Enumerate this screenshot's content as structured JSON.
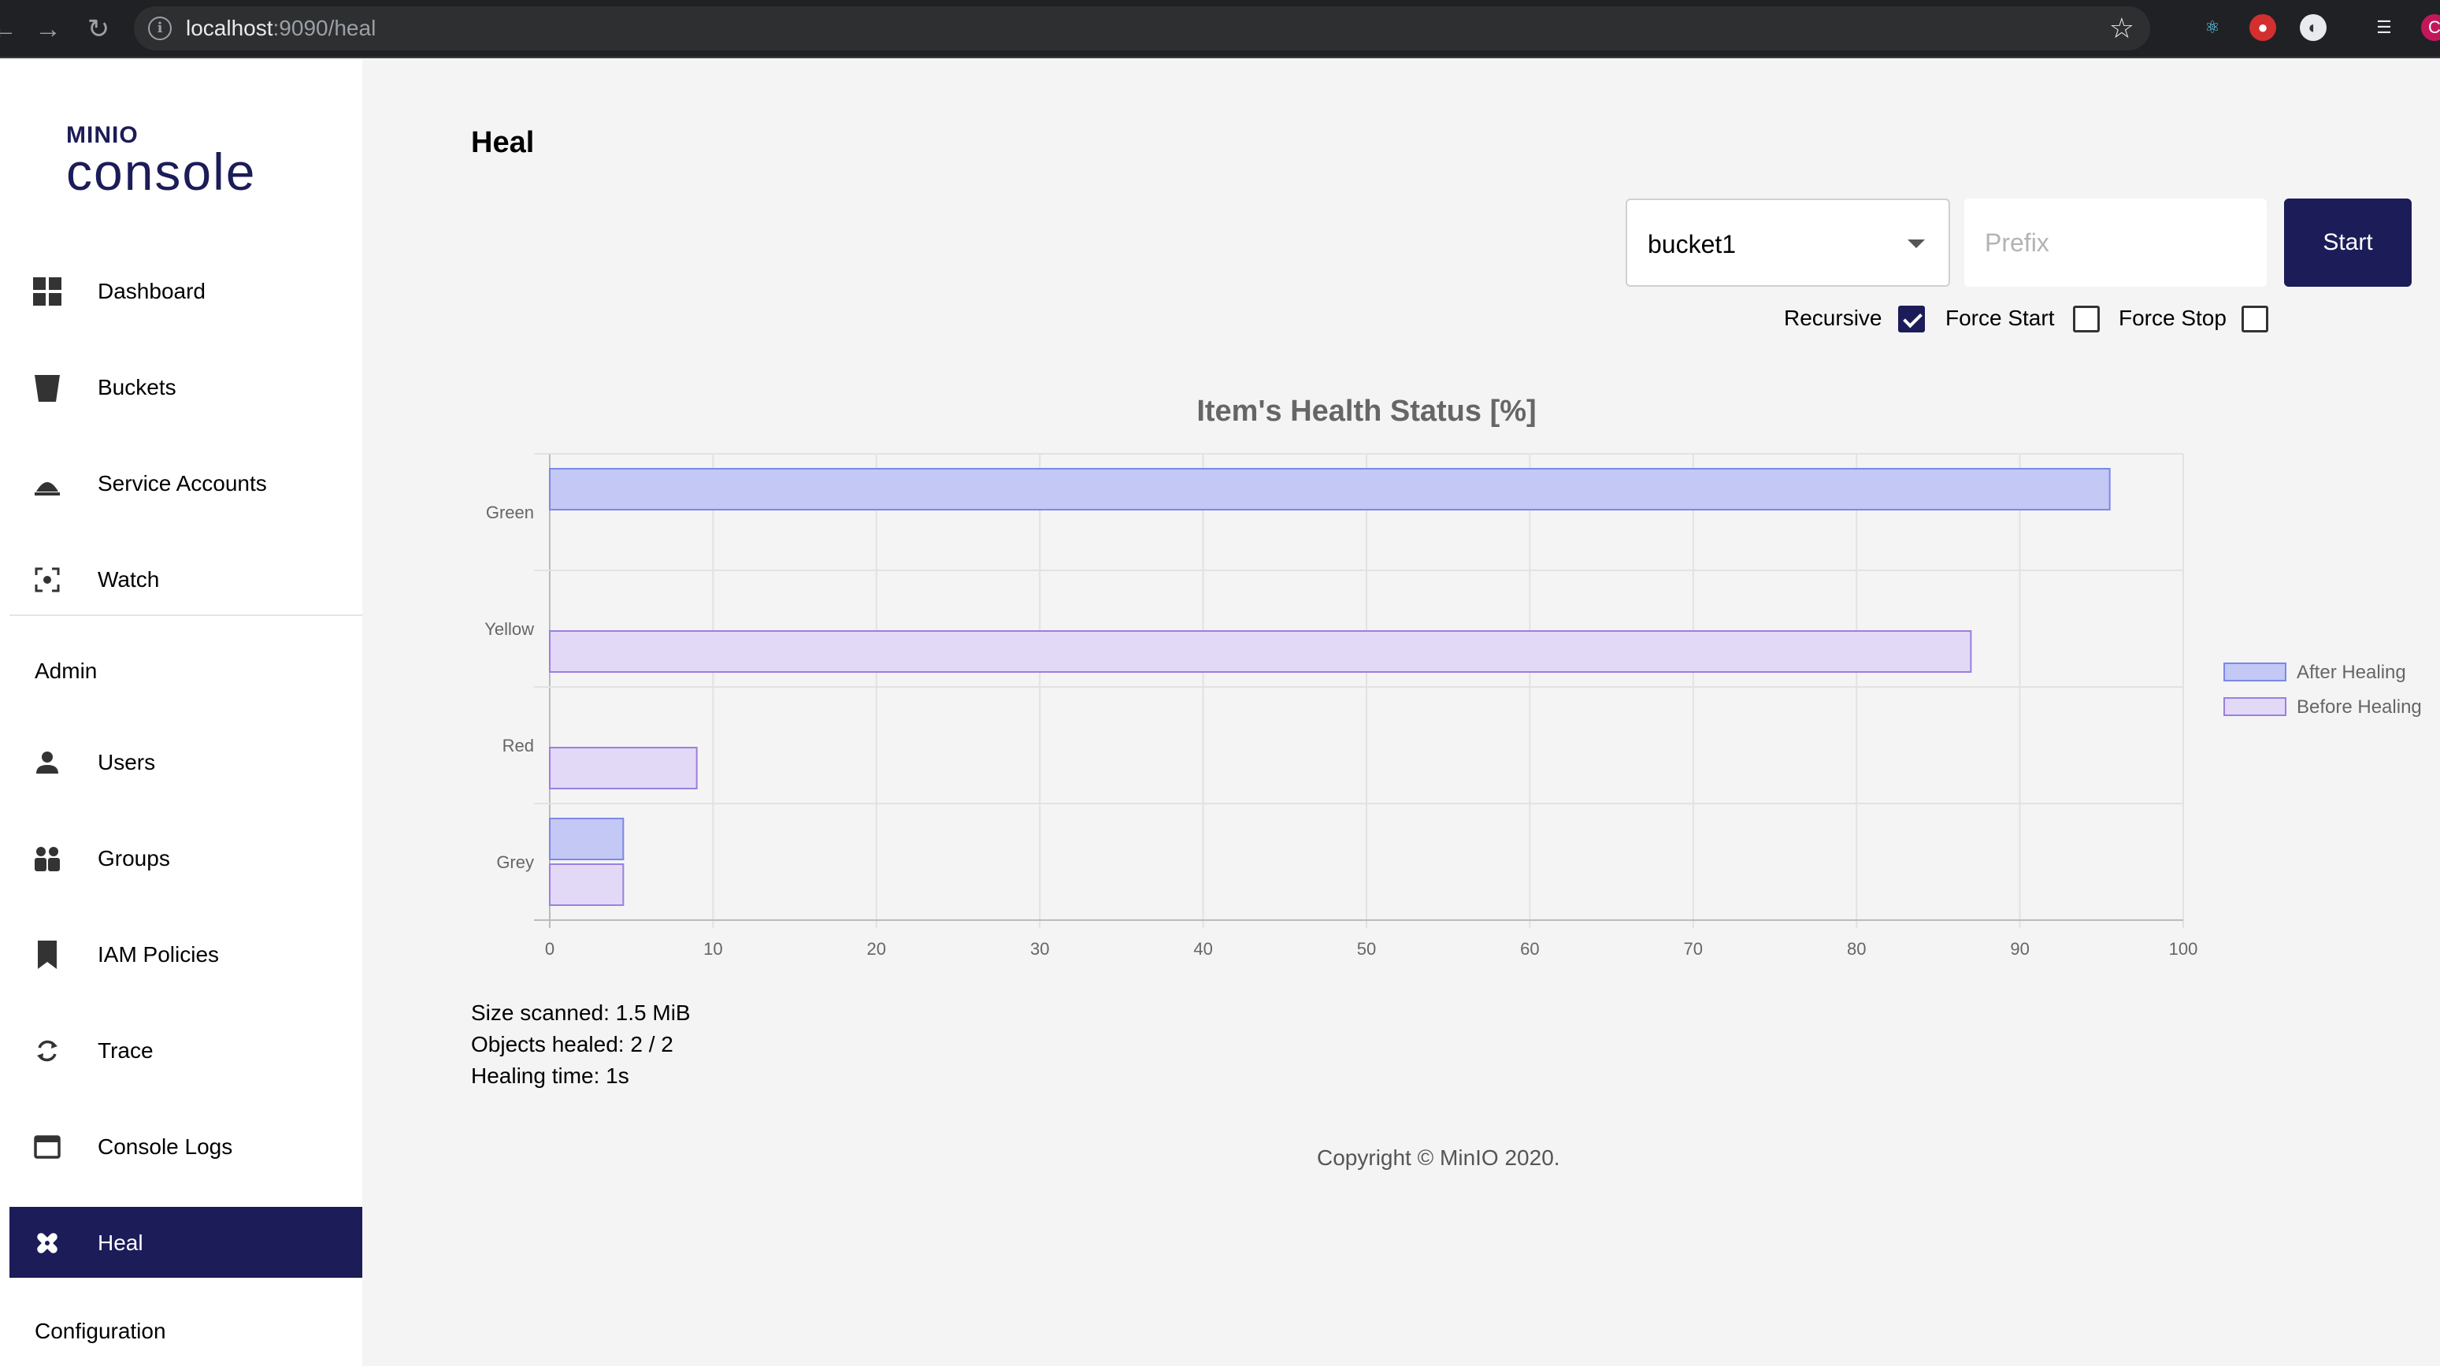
{
  "browser": {
    "url_host": "localhost",
    "url_path": ":9090/heal"
  },
  "logo": {
    "top": "MINIO",
    "bottom": "console"
  },
  "sidebar": {
    "items": [
      {
        "label": "Dashboard",
        "icon": "dashboard-icon"
      },
      {
        "label": "Buckets",
        "icon": "bucket-icon"
      },
      {
        "label": "Service Accounts",
        "icon": "service-accounts-icon"
      },
      {
        "label": "Watch",
        "icon": "watch-icon"
      }
    ],
    "admin_label": "Admin",
    "admin_items": [
      {
        "label": "Users",
        "icon": "user-icon"
      },
      {
        "label": "Groups",
        "icon": "groups-icon"
      },
      {
        "label": "IAM Policies",
        "icon": "policy-icon"
      },
      {
        "label": "Trace",
        "icon": "trace-icon"
      },
      {
        "label": "Console Logs",
        "icon": "logs-icon"
      },
      {
        "label": "Heal",
        "icon": "heal-icon",
        "active": true
      }
    ],
    "configuration_label": "Configuration"
  },
  "page": {
    "title": "Heal",
    "bucket_select_value": "bucket1",
    "prefix_placeholder": "Prefix",
    "start_label": "Start",
    "options": {
      "recursive_label": "Recursive",
      "recursive_checked": true,
      "force_start_label": "Force Start",
      "force_start_checked": false,
      "force_stop_label": "Force Stop",
      "force_stop_checked": false
    }
  },
  "chart_data": {
    "type": "bar",
    "orientation": "horizontal",
    "title": "Item's Health Status [%]",
    "categories": [
      "Green",
      "Yellow",
      "Red",
      "Grey"
    ],
    "series": [
      {
        "name": "After Healing",
        "values": [
          95.5,
          0,
          0,
          4.5
        ],
        "fill": "#c3c8f4",
        "stroke": "#7c88e8"
      },
      {
        "name": "Before Healing",
        "values": [
          0,
          87,
          9,
          4.5
        ],
        "fill": "#e2d9f6",
        "stroke": "#9b7fe0"
      }
    ],
    "xlim": [
      0,
      100
    ],
    "xticks": [
      "0",
      "10",
      "20",
      "30",
      "40",
      "50",
      "60",
      "70",
      "80",
      "90",
      "100"
    ],
    "grid": true,
    "legend_position": "right"
  },
  "stats": {
    "size_scanned": "Size scanned: 1.5 MiB",
    "objects_healed": "Objects healed: 2 / 2",
    "healing_time": "Healing time: 1s"
  },
  "footer": {
    "copyright": "Copyright © MinIO 2020."
  },
  "colors": {
    "brand": "#1c1c59",
    "background": "#f4f4f4"
  }
}
